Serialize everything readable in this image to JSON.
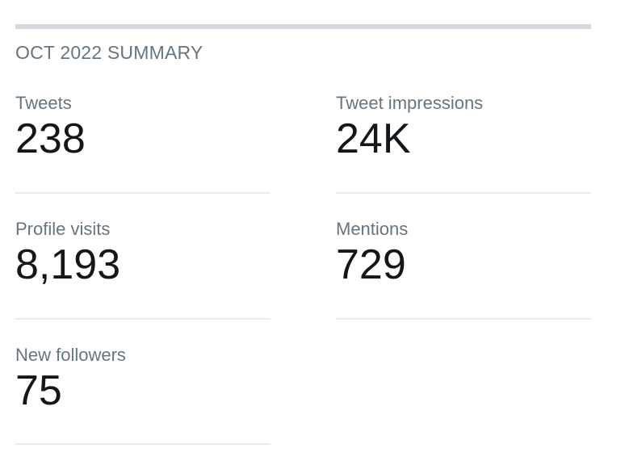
{
  "summary": {
    "title": "OCT 2022 SUMMARY"
  },
  "stats": [
    {
      "label": "Tweets",
      "value": "238"
    },
    {
      "label": "Tweet impressions",
      "value": "24K"
    },
    {
      "label": "Profile visits",
      "value": "8,193"
    },
    {
      "label": "Mentions",
      "value": "729"
    },
    {
      "label": "New followers",
      "value": "75"
    }
  ]
}
